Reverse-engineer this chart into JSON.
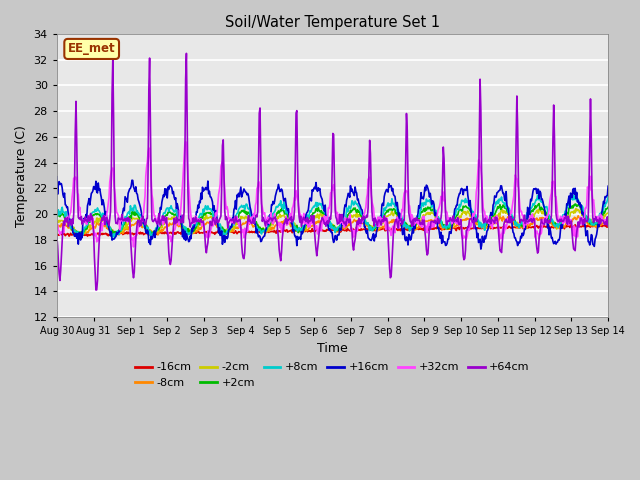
{
  "title": "Soil/Water Temperature Set 1",
  "xlabel": "Time",
  "ylabel": "Temperature (C)",
  "ylim": [
    12,
    34
  ],
  "yticks": [
    12,
    14,
    16,
    18,
    20,
    22,
    24,
    26,
    28,
    30,
    32,
    34
  ],
  "fig_bg": "#c8c8c8",
  "plot_bg": "#e8e8e8",
  "series": {
    "-16cm": {
      "color": "#dd0000",
      "lw": 1.2
    },
    "-8cm": {
      "color": "#ff8800",
      "lw": 1.2
    },
    "-2cm": {
      "color": "#cccc00",
      "lw": 1.2
    },
    "+2cm": {
      "color": "#00bb00",
      "lw": 1.2
    },
    "+8cm": {
      "color": "#00cccc",
      "lw": 1.2
    },
    "+16cm": {
      "color": "#0000cc",
      "lw": 1.2
    },
    "+32cm": {
      "color": "#ff44ff",
      "lw": 1.2
    },
    "+64cm": {
      "color": "#9900cc",
      "lw": 1.2
    }
  },
  "label_box": {
    "text": "EE_met",
    "facecolor": "#ffffaa",
    "edgecolor": "#993300",
    "textcolor": "#993300"
  }
}
